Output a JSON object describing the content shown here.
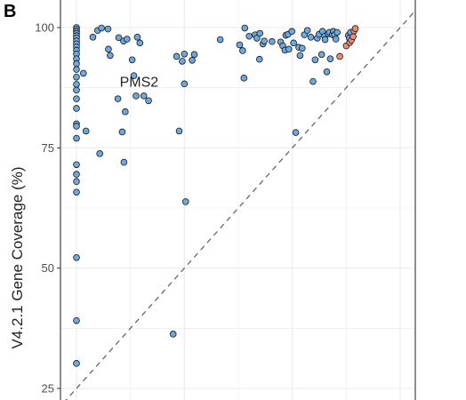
{
  "figure": {
    "panel_label": "B"
  },
  "chart_data": {
    "type": "scatter",
    "title": "",
    "xlabel": "",
    "ylabel": "V4.2.1 Gene Coverage (%)",
    "ylim": [
      22,
      103
    ],
    "xlim": [
      22,
      103
    ],
    "y_ticks": [
      "25",
      "50",
      "75",
      "100"
    ],
    "x_ticks": [
      25,
      37.5,
      50,
      62.5,
      75,
      87.5,
      100
    ],
    "grid": true,
    "reference_line": {
      "type": "identity",
      "style": "dashed",
      "color": "#666666"
    },
    "series": [
      {
        "color": "#6fa8dc",
        "points": [
          [
            25,
            100
          ],
          [
            25,
            99.6
          ],
          [
            25,
            99.2
          ],
          [
            25,
            98.8
          ],
          [
            25,
            98.3
          ],
          [
            25,
            97.8
          ],
          [
            25,
            97.2
          ],
          [
            25,
            96.6
          ],
          [
            25,
            96.0
          ],
          [
            25,
            95.3
          ],
          [
            25,
            94.5
          ],
          [
            25,
            93.5
          ],
          [
            25,
            92.5
          ],
          [
            25,
            91.3
          ],
          [
            25,
            89.7
          ],
          [
            25,
            88.2
          ],
          [
            25,
            87.0
          ],
          [
            25,
            85.2
          ],
          [
            25,
            83.2
          ],
          [
            25,
            80.0
          ],
          [
            25,
            79.5
          ],
          [
            25,
            77.0
          ],
          [
            25,
            71.5
          ],
          [
            25,
            69.5
          ],
          [
            25,
            68.0
          ],
          [
            25,
            65.8
          ],
          [
            25,
            52.2
          ],
          [
            25,
            39.1
          ],
          [
            25,
            30.2
          ],
          [
            26.6,
            90.5
          ],
          [
            27.2,
            78.5
          ],
          [
            28.8,
            98.0
          ],
          [
            29.9,
            99.4
          ],
          [
            30.4,
            73.8
          ],
          [
            30.8,
            99.9
          ],
          [
            32.3,
            99.7
          ],
          [
            32.4,
            95.5
          ],
          [
            32.8,
            94.2
          ],
          [
            34.6,
            85.2
          ],
          [
            34.8,
            97.9
          ],
          [
            35.6,
            78.3
          ],
          [
            35.9,
            97.2
          ],
          [
            36.0,
            72.0
          ],
          [
            36.3,
            82.5
          ],
          [
            36.7,
            97.6
          ],
          [
            37.9,
            93.3
          ],
          [
            38.3,
            90.0
          ],
          [
            38.8,
            85.8
          ],
          [
            39.1,
            98.0
          ],
          [
            39.7,
            96.8
          ],
          [
            40.6,
            85.8
          ],
          [
            41.7,
            84.8
          ],
          [
            47.4,
            36.3
          ],
          [
            48.2,
            94.0
          ],
          [
            48.8,
            78.5
          ],
          [
            49.5,
            93.0
          ],
          [
            50.0,
            94.5
          ],
          [
            50.0,
            88.3
          ],
          [
            50.3,
            63.8
          ],
          [
            51.8,
            93.2
          ],
          [
            52.3,
            94.4
          ],
          [
            58.3,
            97.5
          ],
          [
            62.8,
            96.4
          ],
          [
            63.5,
            95.2
          ],
          [
            63.8,
            89.5
          ],
          [
            64.0,
            99.9
          ],
          [
            65.0,
            98.2
          ],
          [
            66.4,
            98.5
          ],
          [
            66.8,
            97.8
          ],
          [
            67.4,
            93.4
          ],
          [
            67.5,
            98.8
          ],
          [
            68.2,
            96.6
          ],
          [
            68.5,
            97.2
          ],
          [
            70.3,
            97.1
          ],
          [
            72.3,
            97.0
          ],
          [
            72.8,
            96.2
          ],
          [
            73.3,
            95.3
          ],
          [
            73.5,
            98.4
          ],
          [
            74.0,
            98.6
          ],
          [
            74.2,
            95.5
          ],
          [
            74.9,
            99.2
          ],
          [
            75.3,
            96.8
          ],
          [
            75.8,
            78.2
          ],
          [
            76.5,
            95.9
          ],
          [
            76.8,
            94.2
          ],
          [
            77.3,
            95.7
          ],
          [
            77.8,
            98.5
          ],
          [
            78.5,
            99.4
          ],
          [
            79.3,
            98.0
          ],
          [
            79.8,
            88.8
          ],
          [
            80.3,
            93.3
          ],
          [
            80.8,
            97.8
          ],
          [
            81.2,
            98.6
          ],
          [
            81.8,
            94.4
          ],
          [
            82.0,
            99.2
          ],
          [
            82.5,
            98.2
          ],
          [
            82.6,
            97.5
          ],
          [
            83.0,
            90.8
          ],
          [
            83.3,
            98.7
          ],
          [
            83.6,
            99.0
          ],
          [
            83.8,
            93.5
          ],
          [
            84.3,
            98.5
          ],
          [
            84.5,
            99.2
          ],
          [
            84.8,
            98.5
          ],
          [
            85.1,
            97.6
          ],
          [
            85.4,
            99.0
          ],
          [
            88.0,
            98.4
          ],
          [
            88.2,
            97.8
          ],
          [
            88.5,
            99.0
          ]
        ]
      },
      {
        "color": "#f08b6e",
        "points": [
          [
            86.0,
            94.0
          ],
          [
            87.5,
            96.2
          ],
          [
            88.3,
            96.9
          ],
          [
            88.7,
            97.4
          ],
          [
            89.1,
            98.1
          ],
          [
            89.3,
            99.3
          ],
          [
            89.6,
            99.8
          ]
        ]
      }
    ],
    "annotations": [
      {
        "text": "PMS2",
        "x": 39.5,
        "y": 88.8
      }
    ]
  }
}
